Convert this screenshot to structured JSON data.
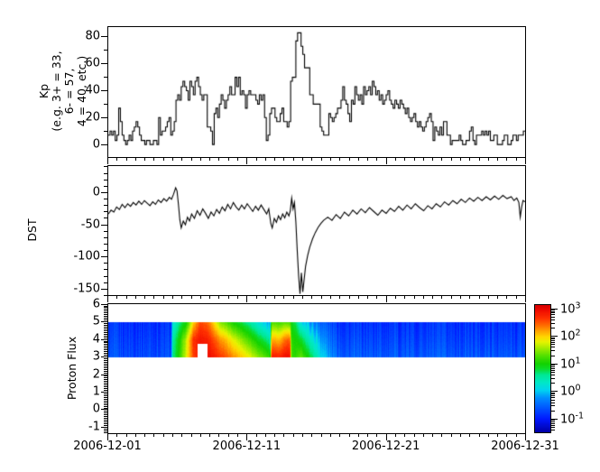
{
  "figure_background": "#ffffff",
  "x_axis": {
    "tick_labels": [
      "2006-12-01",
      "2006-12-11",
      "2006-12-21",
      "2006-12-31"
    ],
    "tick_days": [
      0,
      10,
      20,
      30
    ],
    "minor_step_days": 0.6666667,
    "total_days": 30
  },
  "chart_data": [
    {
      "id": "kp",
      "type": "step-line",
      "ylabel": "Kp\n(e.g. 3+ = 33,\n6- = 57,\n4 = 40, etc.)",
      "yticks": [
        0,
        20,
        40,
        60,
        80
      ],
      "minor_ytick_step": 10,
      "ylim": [
        -9.3,
        87.3
      ],
      "cadence_hours": 3,
      "line_color": "#000000",
      "values": [
        7,
        10,
        7,
        10,
        3,
        7,
        27,
        17,
        7,
        3,
        0,
        3,
        7,
        3,
        10,
        13,
        17,
        13,
        7,
        3,
        3,
        0,
        3,
        3,
        0,
        0,
        3,
        3,
        0,
        20,
        7,
        10,
        10,
        13,
        17,
        20,
        7,
        10,
        17,
        33,
        37,
        33,
        43,
        47,
        43,
        40,
        33,
        47,
        43,
        37,
        47,
        50,
        43,
        37,
        33,
        37,
        37,
        13,
        13,
        10,
        0,
        23,
        27,
        20,
        30,
        37,
        33,
        27,
        33,
        37,
        43,
        37,
        37,
        50,
        43,
        50,
        37,
        40,
        37,
        27,
        37,
        40,
        37,
        37,
        37,
        33,
        30,
        37,
        33,
        37,
        20,
        3,
        7,
        23,
        27,
        27,
        20,
        17,
        17,
        23,
        27,
        17,
        17,
        13,
        17,
        47,
        50,
        50,
        77,
        83,
        83,
        73,
        67,
        57,
        57,
        57,
        37,
        37,
        30,
        30,
        30,
        30,
        13,
        10,
        7,
        7,
        7,
        23,
        20,
        17,
        20,
        23,
        27,
        27,
        33,
        43,
        33,
        30,
        23,
        17,
        33,
        30,
        43,
        37,
        33,
        37,
        30,
        43,
        37,
        40,
        43,
        37,
        47,
        43,
        37,
        40,
        33,
        37,
        30,
        33,
        37,
        40,
        33,
        30,
        27,
        33,
        30,
        27,
        33,
        30,
        27,
        23,
        27,
        20,
        17,
        20,
        23,
        17,
        13,
        17,
        13,
        10,
        13,
        17,
        20,
        23,
        17,
        3,
        13,
        10,
        7,
        13,
        7,
        17,
        17,
        7,
        7,
        0,
        3,
        3,
        3,
        3,
        7,
        3,
        0,
        0,
        3,
        3,
        10,
        13,
        3,
        0,
        7,
        7,
        7,
        10,
        7,
        10,
        7,
        10,
        3,
        3,
        7,
        7,
        0,
        0,
        0,
        3,
        7,
        7,
        0,
        0,
        3,
        7,
        7,
        3,
        7,
        7,
        7,
        10
      ]
    },
    {
      "id": "dst",
      "type": "line",
      "ylabel": "DST",
      "yticks": [
        0,
        -50,
        -100,
        -150
      ],
      "minor_ytick_step": 10,
      "ylim": [
        -160,
        42
      ],
      "line_color": "#000000",
      "points": [
        [
          0.0,
          -33
        ],
        [
          0.2,
          -27
        ],
        [
          0.4,
          -30
        ],
        [
          0.6,
          -22
        ],
        [
          0.8,
          -26
        ],
        [
          1.0,
          -18
        ],
        [
          1.2,
          -23
        ],
        [
          1.4,
          -17
        ],
        [
          1.6,
          -21
        ],
        [
          1.8,
          -15
        ],
        [
          2.0,
          -19
        ],
        [
          2.2,
          -13
        ],
        [
          2.4,
          -18
        ],
        [
          2.6,
          -12
        ],
        [
          2.8,
          -16
        ],
        [
          3.0,
          -20
        ],
        [
          3.2,
          -14
        ],
        [
          3.4,
          -18
        ],
        [
          3.6,
          -11
        ],
        [
          3.8,
          -15
        ],
        [
          4.0,
          -9
        ],
        [
          4.2,
          -13
        ],
        [
          4.4,
          -7
        ],
        [
          4.55,
          -10
        ],
        [
          4.7,
          -2
        ],
        [
          4.85,
          8
        ],
        [
          4.95,
          3
        ],
        [
          5.05,
          -18
        ],
        [
          5.15,
          -42
        ],
        [
          5.25,
          -55
        ],
        [
          5.4,
          -44
        ],
        [
          5.55,
          -50
        ],
        [
          5.7,
          -38
        ],
        [
          5.85,
          -44
        ],
        [
          6.0,
          -33
        ],
        [
          6.2,
          -40
        ],
        [
          6.4,
          -28
        ],
        [
          6.6,
          -35
        ],
        [
          6.8,
          -25
        ],
        [
          7.0,
          -32
        ],
        [
          7.2,
          -40
        ],
        [
          7.4,
          -30
        ],
        [
          7.6,
          -36
        ],
        [
          7.8,
          -26
        ],
        [
          8.0,
          -32
        ],
        [
          8.2,
          -22
        ],
        [
          8.4,
          -28
        ],
        [
          8.6,
          -18
        ],
        [
          8.8,
          -25
        ],
        [
          9.0,
          -15
        ],
        [
          9.2,
          -22
        ],
        [
          9.4,
          -27
        ],
        [
          9.6,
          -19
        ],
        [
          9.8,
          -25
        ],
        [
          10.0,
          -17
        ],
        [
          10.2,
          -23
        ],
        [
          10.4,
          -29
        ],
        [
          10.6,
          -21
        ],
        [
          10.8,
          -27
        ],
        [
          11.0,
          -19
        ],
        [
          11.2,
          -26
        ],
        [
          11.4,
          -33
        ],
        [
          11.55,
          -25
        ],
        [
          11.7,
          -48
        ],
        [
          11.8,
          -55
        ],
        [
          11.95,
          -40
        ],
        [
          12.1,
          -46
        ],
        [
          12.25,
          -36
        ],
        [
          12.4,
          -42
        ],
        [
          12.55,
          -33
        ],
        [
          12.7,
          -39
        ],
        [
          12.85,
          -30
        ],
        [
          13.0,
          -36
        ],
        [
          13.1,
          -28
        ],
        [
          13.2,
          -8
        ],
        [
          13.3,
          -25
        ],
        [
          13.4,
          -15
        ],
        [
          13.5,
          -45
        ],
        [
          13.6,
          -90
        ],
        [
          13.7,
          -130
        ],
        [
          13.8,
          -158
        ],
        [
          13.9,
          -125
        ],
        [
          14.0,
          -155
        ],
        [
          14.1,
          -135
        ],
        [
          14.2,
          -115
        ],
        [
          14.35,
          -98
        ],
        [
          14.5,
          -85
        ],
        [
          14.7,
          -72
        ],
        [
          14.9,
          -62
        ],
        [
          15.1,
          -54
        ],
        [
          15.3,
          -48
        ],
        [
          15.5,
          -43
        ],
        [
          15.8,
          -38
        ],
        [
          16.1,
          -43
        ],
        [
          16.4,
          -34
        ],
        [
          16.7,
          -40
        ],
        [
          17.0,
          -30
        ],
        [
          17.3,
          -36
        ],
        [
          17.6,
          -27
        ],
        [
          17.9,
          -33
        ],
        [
          18.2,
          -25
        ],
        [
          18.5,
          -31
        ],
        [
          18.8,
          -23
        ],
        [
          19.1,
          -29
        ],
        [
          19.4,
          -35
        ],
        [
          19.7,
          -27
        ],
        [
          20.0,
          -32
        ],
        [
          20.3,
          -24
        ],
        [
          20.6,
          -29
        ],
        [
          20.9,
          -21
        ],
        [
          21.2,
          -27
        ],
        [
          21.5,
          -19
        ],
        [
          21.8,
          -25
        ],
        [
          22.1,
          -17
        ],
        [
          22.4,
          -23
        ],
        [
          22.7,
          -28
        ],
        [
          23.0,
          -20
        ],
        [
          23.3,
          -25
        ],
        [
          23.6,
          -17
        ],
        [
          23.9,
          -22
        ],
        [
          24.2,
          -14
        ],
        [
          24.5,
          -19
        ],
        [
          24.8,
          -12
        ],
        [
          25.1,
          -17
        ],
        [
          25.4,
          -10
        ],
        [
          25.7,
          -15
        ],
        [
          26.0,
          -8
        ],
        [
          26.3,
          -13
        ],
        [
          26.6,
          -7
        ],
        [
          26.9,
          -12
        ],
        [
          27.2,
          -6
        ],
        [
          27.5,
          -11
        ],
        [
          27.8,
          -5
        ],
        [
          28.1,
          -10
        ],
        [
          28.4,
          -4
        ],
        [
          28.7,
          -9
        ],
        [
          29.0,
          -6
        ],
        [
          29.2,
          -12
        ],
        [
          29.4,
          -8
        ],
        [
          29.55,
          -15
        ],
        [
          29.65,
          -38
        ],
        [
          29.75,
          -22
        ],
        [
          29.85,
          -12
        ],
        [
          30.0,
          -14
        ]
      ]
    },
    {
      "id": "proton_flux",
      "type": "heatmap",
      "ylabel": "Proton Flux",
      "yticks": [
        -1,
        0,
        1,
        2,
        3,
        4,
        5,
        6
      ],
      "minor_ytick_step": 0.1,
      "ylim": [
        -1.36,
        6.03
      ],
      "band_y": [
        3,
        5
      ],
      "value_scale": "log10",
      "clim_log10": [
        -1.52,
        3.15
      ],
      "keyframes": [
        [
          0.0,
          -0.7,
          -0.8,
          -0.9
        ],
        [
          4.5,
          -0.7,
          -0.8,
          -0.9
        ],
        [
          4.62,
          0.6,
          0.5,
          0.2
        ],
        [
          5.1,
          1.1,
          1.0,
          0.6
        ],
        [
          5.6,
          1.8,
          1.7,
          1.0
        ],
        [
          6.1,
          2.6,
          2.7,
          2.0
        ],
        [
          6.6,
          2.9,
          2.9,
          2.6
        ],
        [
          7.2,
          3.0,
          2.8,
          2.4
        ],
        [
          8.0,
          2.7,
          2.3,
          1.5
        ],
        [
          9.0,
          2.3,
          1.8,
          1.0
        ],
        [
          10.0,
          1.9,
          1.3,
          0.6
        ],
        [
          10.8,
          1.5,
          0.9,
          0.2
        ],
        [
          11.5,
          1.2,
          0.6,
          -0.1
        ],
        [
          11.62,
          1.0,
          0.4,
          -0.2
        ],
        [
          11.72,
          2.9,
          2.2,
          1.3
        ],
        [
          12.3,
          2.8,
          2.1,
          1.2
        ],
        [
          12.85,
          3.0,
          2.5,
          1.3
        ],
        [
          13.05,
          2.9,
          2.4,
          1.2
        ],
        [
          13.15,
          1.2,
          1.1,
          0.9
        ],
        [
          13.45,
          1.1,
          1.0,
          0.7
        ],
        [
          13.8,
          1.4,
          0.9,
          0.2
        ],
        [
          14.3,
          1.0,
          0.5,
          -0.1
        ],
        [
          14.9,
          0.5,
          0.1,
          -0.4
        ],
        [
          15.5,
          0.0,
          -0.3,
          -0.6
        ],
        [
          16.2,
          -0.4,
          -0.6,
          -0.8
        ],
        [
          17.0,
          -0.6,
          -0.75,
          -0.9
        ],
        [
          30.0,
          -0.65,
          -0.8,
          -0.9
        ]
      ],
      "data_gap": {
        "t": [
          6.4,
          7.1
        ],
        "y": [
          3.0,
          3.8
        ]
      },
      "colormap_stops": [
        [
          0.0,
          "#0000A8"
        ],
        [
          0.1,
          "#0018FF"
        ],
        [
          0.18,
          "#0050FF"
        ],
        [
          0.27,
          "#0090FF"
        ],
        [
          0.33,
          "#00D4F0"
        ],
        [
          0.39,
          "#00E8C8"
        ],
        [
          0.45,
          "#00E896"
        ],
        [
          0.5,
          "#0CDC28"
        ],
        [
          0.54,
          "#14D200"
        ],
        [
          0.6,
          "#50E000"
        ],
        [
          0.66,
          "#A0EC00"
        ],
        [
          0.71,
          "#E6F400"
        ],
        [
          0.75,
          "#FFD800"
        ],
        [
          0.8,
          "#FFA000"
        ],
        [
          0.85,
          "#FF6400"
        ],
        [
          0.9,
          "#FF3000"
        ],
        [
          0.96,
          "#F00C00"
        ],
        [
          1.0,
          "#D80000"
        ]
      ]
    }
  ],
  "colorbar": {
    "tick_base": "10",
    "tick_exponents": [
      3,
      2,
      1,
      0,
      -1
    ],
    "clim_log10": [
      -1.52,
      3.15
    ]
  }
}
